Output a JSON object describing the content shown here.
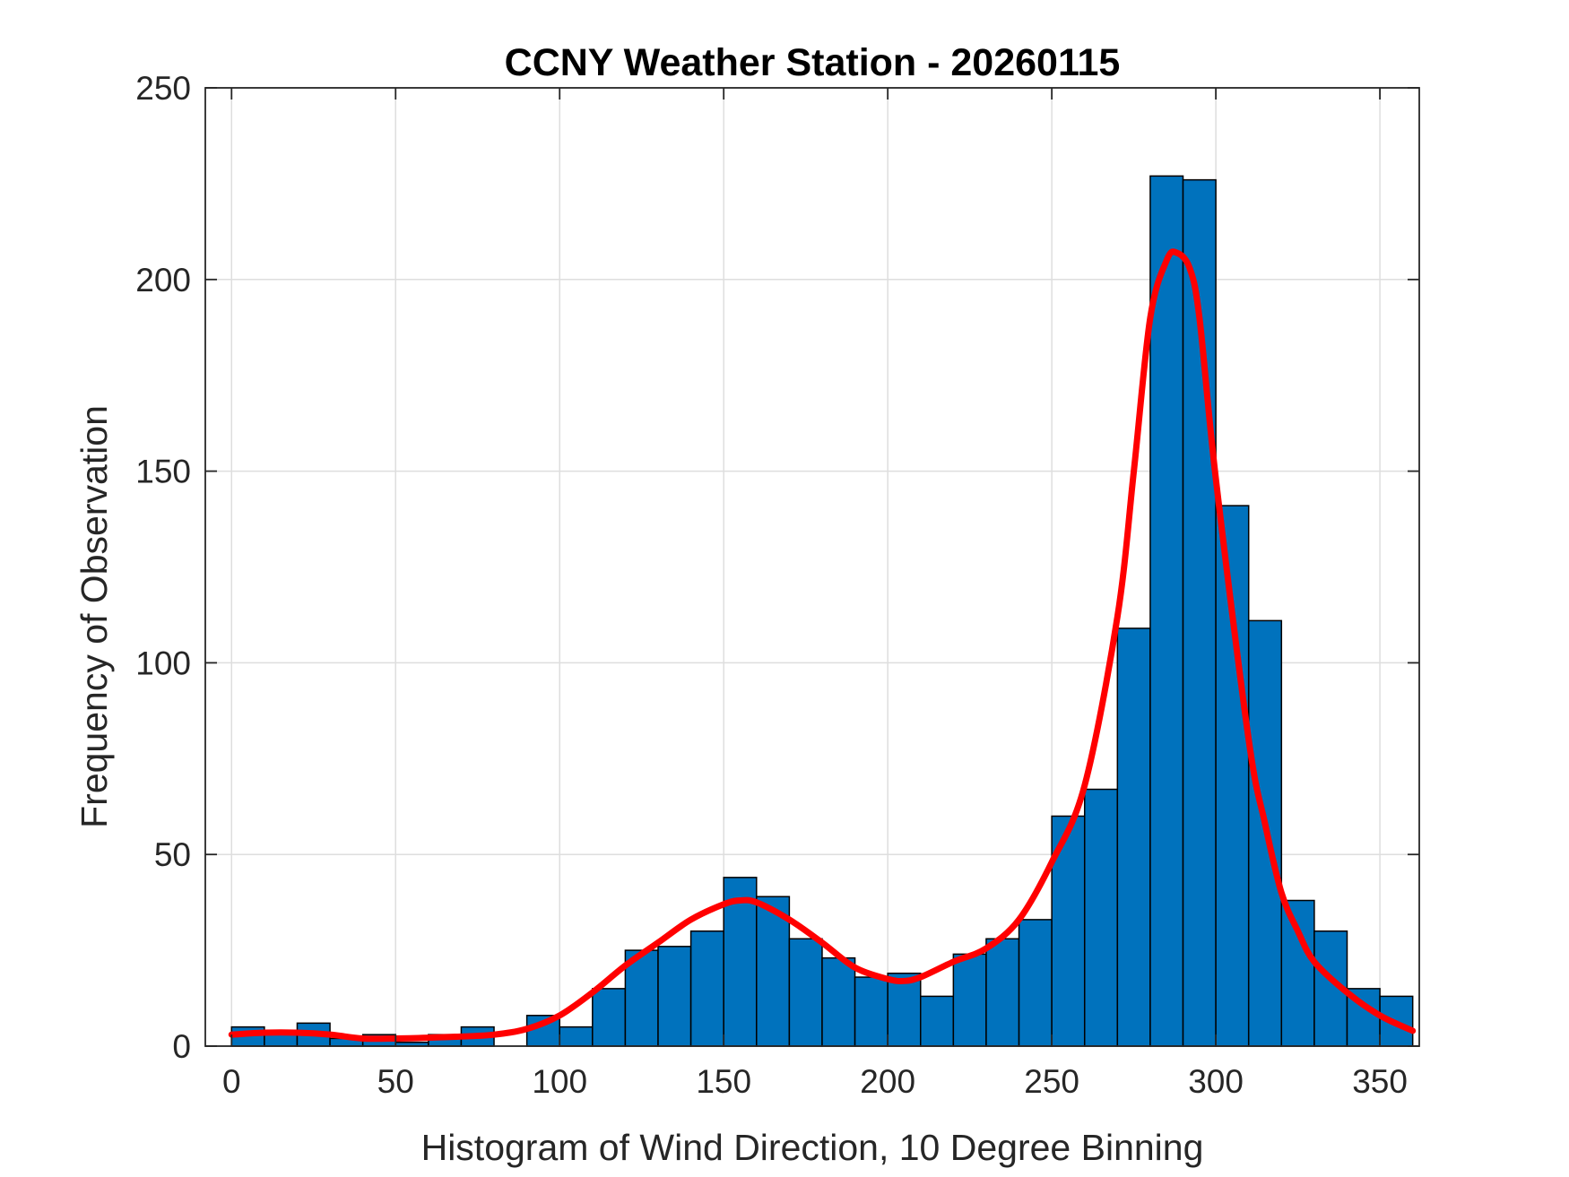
{
  "chart_data": {
    "type": "bar",
    "title": "CCNY Weather Station - 20260115",
    "xlabel": "Histogram of Wind Direction, 10 Degree Binning",
    "ylabel": "Frequency of Observation",
    "xlim": [
      -8,
      362
    ],
    "ylim": [
      0,
      250
    ],
    "xticks": [
      0,
      50,
      100,
      150,
      200,
      250,
      300,
      350
    ],
    "yticks": [
      0,
      50,
      100,
      150,
      200,
      250
    ],
    "grid": true,
    "bin_edges": [
      0,
      10,
      20,
      30,
      40,
      50,
      60,
      70,
      80,
      90,
      100,
      110,
      120,
      130,
      140,
      150,
      160,
      170,
      180,
      190,
      200,
      210,
      220,
      230,
      240,
      250,
      260,
      270,
      280,
      290,
      300,
      310,
      320,
      330,
      340,
      350,
      360
    ],
    "values": [
      5,
      3,
      6,
      2,
      3,
      1,
      3,
      5,
      0,
      8,
      5,
      15,
      25,
      26,
      30,
      44,
      39,
      28,
      23,
      18,
      19,
      13,
      24,
      28,
      33,
      60,
      67,
      109,
      227,
      226,
      141,
      111,
      38,
      30,
      15,
      13
    ],
    "bar_color": "#0072BD",
    "series": [
      {
        "type": "line",
        "color": "#FF0000",
        "x": [
          0,
          10,
          20,
          30,
          40,
          50,
          60,
          70,
          80,
          90,
          100,
          110,
          120,
          130,
          140,
          150,
          155,
          160,
          170,
          180,
          190,
          200,
          205,
          210,
          220,
          230,
          240,
          250,
          260,
          270,
          275,
          280,
          285,
          288,
          292,
          295,
          300,
          310,
          315,
          320,
          325,
          330,
          340,
          350,
          360
        ],
        "y": [
          3,
          3.5,
          3.5,
          3,
          2,
          2,
          2.2,
          2.5,
          3,
          4.5,
          8,
          14,
          21,
          27,
          33,
          37,
          38,
          37.5,
          33,
          27,
          20.5,
          17.5,
          17,
          18,
          22,
          25.5,
          33,
          48,
          68,
          112,
          150,
          190,
          205,
          207,
          203,
          190,
          148,
          80,
          58,
          40,
          30,
          22,
          14,
          8,
          4
        ]
      }
    ]
  }
}
